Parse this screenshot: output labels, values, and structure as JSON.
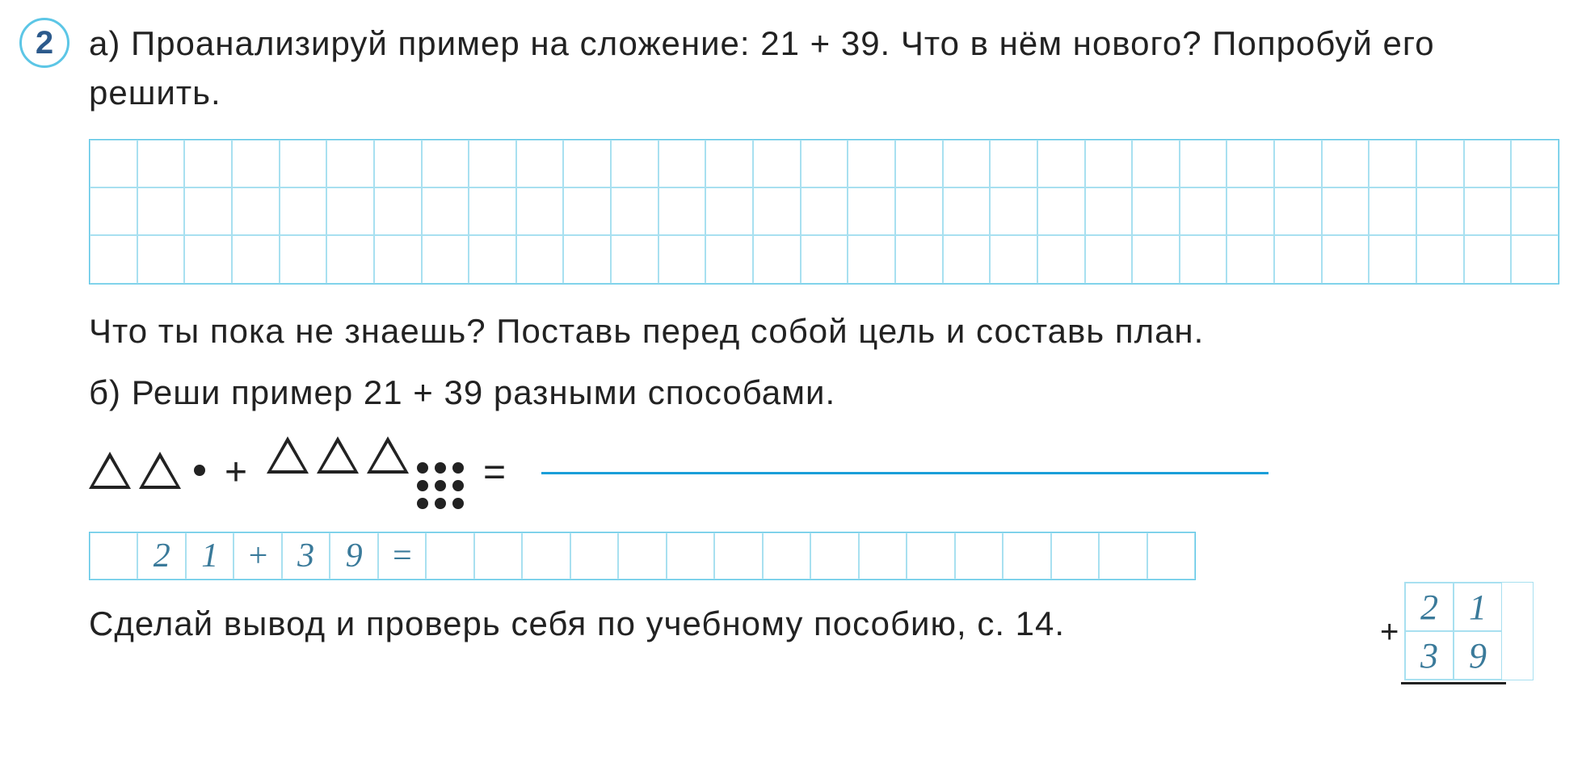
{
  "problem_number": "2",
  "part_a_text": "а) Проанализируй пример на сложение: 21 + 39. Что в нём нового? Попробуй его решить.",
  "goal_text": "Что ты пока не знаешь? Поставь перед собой цель и составь план.",
  "part_b_text": "б) Реши пример 21 + 39 разными способами.",
  "diagram": {
    "left_triangles": 2,
    "left_extra_dots": 1,
    "plus": "+",
    "right_triangles": 3,
    "right_dots_grid": 9,
    "equals": "="
  },
  "equation_cells": [
    "",
    "2",
    "1",
    "+",
    "3",
    "9",
    "=",
    "",
    "",
    "",
    "",
    "",
    "",
    "",
    "",
    "",
    "",
    "",
    "",
    "",
    "",
    "",
    ""
  ],
  "column_addition": {
    "row1": [
      "2",
      "1"
    ],
    "row2": [
      "3",
      "9"
    ],
    "plus": "+"
  },
  "conclusion_text": "Сделай вывод и проверь себя по учебному пособию, с. 14.",
  "colors": {
    "grid_border": "#5cc6e6",
    "grid_cell": "#a8e0f0",
    "text": "#222222",
    "circle_border": "#5cc6e6",
    "circle_text": "#2c5a8c",
    "handwriting": "#3a7a9a",
    "blank_line": "#1a9ed9"
  },
  "grid": {
    "cols": 31,
    "rows": 3
  }
}
